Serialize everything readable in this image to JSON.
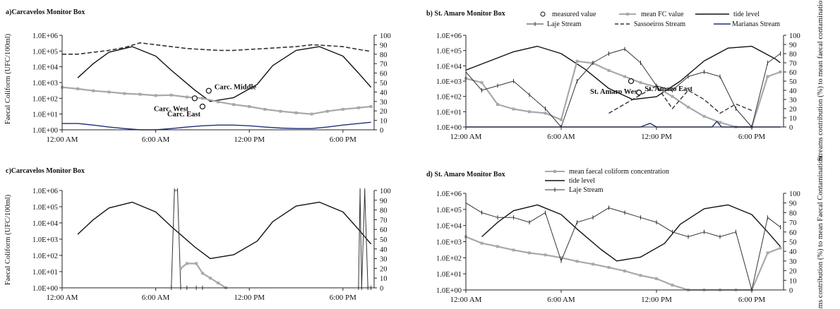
{
  "chart_data": [
    {
      "id": "a",
      "type": "line",
      "title": "a)Carcavelos Monitor Box",
      "ylabel": "Faecal Coliform (UFC/100ml)",
      "ylabel_right": "",
      "y_log": true,
      "ylim": [
        1,
        1000000
      ],
      "y_ticks": [
        "1.0E+00",
        "1.0E+01",
        "1.0E+02",
        "1.0E+03",
        "1.0E+04",
        "1.0E+05",
        "1.0E+06"
      ],
      "y2lim": [
        0,
        100
      ],
      "y2_ticks": [
        "0",
        "10",
        "20",
        "30",
        "40",
        "50",
        "60",
        "70",
        "80",
        "90",
        "100"
      ],
      "x_range_hours": [
        0,
        20
      ],
      "x_ticks": [
        {
          "hour": 0,
          "label": "12:00 AM"
        },
        {
          "hour": 6,
          "label": "6:00 AM"
        },
        {
          "hour": 12,
          "label": "12:00 PM"
        },
        {
          "hour": 18,
          "label": "6:00 PM"
        }
      ],
      "series": [
        {
          "axis": "y2",
          "color": "#111111",
          "style": "solid",
          "width": 1.4,
          "x": [
            1,
            2,
            3,
            4.5,
            6,
            7,
            8.5,
            9.5,
            11,
            12.5,
            13.5,
            15,
            16.5,
            18,
            19,
            19.8
          ],
          "y": [
            55,
            70,
            82,
            88,
            78,
            63,
            42,
            30,
            34,
            48,
            68,
            84,
            88,
            78,
            60,
            45
          ]
        },
        {
          "axis": "y2",
          "color": "#333333",
          "style": "dash",
          "width": 1.6,
          "x": [
            0,
            1,
            2,
            3,
            4,
            5,
            6,
            7,
            8,
            9,
            10,
            11,
            12,
            13,
            14,
            15,
            16,
            17,
            18,
            19,
            19.8
          ],
          "y": [
            80,
            80,
            82,
            84,
            87,
            92,
            90,
            88,
            86,
            85,
            84,
            84,
            85,
            86,
            87,
            88,
            90,
            89,
            88,
            85,
            83
          ]
        },
        {
          "axis": "y",
          "color": "#a8a8a8",
          "style": "marker",
          "width": 2.2,
          "x": [
            0,
            1,
            2,
            3,
            4,
            5,
            6,
            7,
            8,
            9,
            10,
            11,
            12,
            13,
            14,
            15,
            16,
            17,
            18,
            19,
            19.8
          ],
          "y": [
            500,
            400,
            300,
            250,
            200,
            180,
            150,
            160,
            120,
            100,
            60,
            40,
            30,
            20,
            15,
            12,
            10,
            15,
            20,
            25,
            30
          ]
        },
        {
          "axis": "y",
          "color": "#1f2f7a",
          "style": "solid",
          "width": 1.4,
          "x": [
            0,
            1,
            2,
            3,
            4,
            5,
            6,
            7,
            8,
            9,
            10,
            11,
            12,
            13,
            14,
            15,
            16,
            17,
            18,
            19,
            19.8
          ],
          "y": [
            2.5,
            2.5,
            2,
            1.5,
            1.2,
            1,
            1,
            1.2,
            1.5,
            1.8,
            2,
            2,
            1.8,
            1.5,
            1.3,
            1.2,
            1.2,
            1.5,
            2,
            2.5,
            3
          ]
        }
      ],
      "points": [
        {
          "label": "Carc. West",
          "x": 8.5,
          "y": 100
        },
        {
          "label": "Carc. Middle",
          "x": 9.4,
          "y": 300
        },
        {
          "label": "Carc. East",
          "x": 9.0,
          "y": 30
        }
      ]
    },
    {
      "id": "b",
      "type": "line",
      "title": "b) St. Amaro  Monitor Box",
      "ylabel": "",
      "ylabel_right": "Streams contribution (%) to mean faecal contamination",
      "y_log": true,
      "ylim": [
        1,
        1000000
      ],
      "y_ticks": [
        "1.0E+00",
        "1.0E+01",
        "1.0E+02",
        "1.0E+03",
        "1.0E+04",
        "1.0E+05",
        "1.0E+06"
      ],
      "y2lim": [
        0,
        100
      ],
      "y2_ticks": [
        "0",
        "10",
        "20",
        "30",
        "40",
        "50",
        "60",
        "70",
        "80",
        "90",
        "100"
      ],
      "x_range_hours": [
        0,
        20
      ],
      "x_ticks": [
        {
          "hour": 0,
          "label": "12:00 AM"
        },
        {
          "hour": 6,
          "label": "6:00 AM"
        },
        {
          "hour": 12,
          "label": "12:00 PM"
        },
        {
          "hour": 18,
          "label": "6:00 PM"
        }
      ],
      "legend": [
        "measured value",
        "mean FC value",
        "tide level",
        "Laje Stream",
        "Sassoeiros Stream",
        "Marianas Stream"
      ],
      "series": [
        {
          "axis": "y2",
          "color": "#111111",
          "style": "solid",
          "width": 1.4,
          "x": [
            0,
            1.5,
            3,
            4.5,
            6,
            7.5,
            9,
            10.5,
            12,
            13.5,
            15,
            16.5,
            18,
            19.5,
            19.8
          ],
          "y": [
            62,
            72,
            82,
            88,
            80,
            63,
            42,
            30,
            33,
            50,
            72,
            86,
            88,
            74,
            70
          ]
        },
        {
          "axis": "y",
          "color": "#a8a8a8",
          "style": "marker",
          "width": 2.2,
          "x": [
            0,
            1,
            2,
            3,
            4,
            5,
            6,
            7,
            8,
            9,
            10,
            11,
            12,
            13,
            14,
            15,
            16,
            17,
            18,
            19,
            19.8
          ],
          "y": [
            1500,
            800,
            30,
            15,
            10,
            8,
            3,
            20000,
            15000,
            5000,
            2000,
            800,
            400,
            100,
            20,
            5,
            2,
            1,
            1,
            2000,
            4000
          ]
        },
        {
          "axis": "y2",
          "color": "#333333",
          "style": "cross",
          "width": 1.0,
          "x": [
            0,
            1,
            2,
            3,
            4,
            5,
            6,
            7,
            8,
            9,
            10,
            11,
            12,
            13,
            14,
            15,
            16,
            17,
            18,
            19,
            19.8
          ],
          "y": [
            60,
            40,
            45,
            50,
            35,
            20,
            0,
            50,
            70,
            80,
            85,
            70,
            45,
            40,
            55,
            60,
            55,
            20,
            0,
            70,
            80
          ]
        },
        {
          "axis": "y2",
          "color": "#333333",
          "style": "dash",
          "width": 1.4,
          "x": [
            9,
            10,
            11,
            12,
            13,
            14,
            15,
            16,
            17,
            18
          ],
          "y": [
            15,
            25,
            35,
            45,
            20,
            40,
            30,
            15,
            25,
            18
          ]
        },
        {
          "axis": "y2",
          "color": "#1f2f7a",
          "style": "solid",
          "width": 1.4,
          "x": [
            0,
            11,
            11.6,
            12,
            13,
            15.5,
            15.8,
            16.1,
            17,
            19.8
          ],
          "y": [
            0,
            0,
            4,
            0,
            0,
            0,
            6,
            0,
            0,
            0
          ]
        }
      ],
      "points": [
        {
          "label": "St. Amaro West",
          "x": 10.4,
          "y": 1000
        },
        {
          "label": "St. Amaro East",
          "x": 10.9,
          "y": 180
        }
      ]
    },
    {
      "id": "c",
      "type": "line",
      "title": "c)Carcavelos Monitor Box",
      "ylabel": "Faecal Coliform (UFC/100ml)",
      "ylabel_right": "",
      "y_log": true,
      "ylim": [
        1,
        1000000
      ],
      "y_ticks": [
        "1.0E+00",
        "1.0E+01",
        "1.0E+02",
        "1.0E+03",
        "1.0E+04",
        "1.0E+05",
        "1.0E+06"
      ],
      "y2lim": [
        0,
        100
      ],
      "y2_ticks": [
        "0",
        "10",
        "20",
        "30",
        "40",
        "50",
        "60",
        "70",
        "80",
        "90",
        "100"
      ],
      "x_range_hours": [
        0,
        20
      ],
      "x_ticks": [
        {
          "hour": 0,
          "label": "12:00 AM"
        },
        {
          "hour": 6,
          "label": "6:00 AM"
        },
        {
          "hour": 12,
          "label": "12:00 PM"
        },
        {
          "hour": 18,
          "label": "6:00 PM"
        }
      ],
      "series": [
        {
          "axis": "y2",
          "color": "#111111",
          "style": "solid",
          "width": 1.4,
          "x": [
            1,
            2,
            3,
            4.5,
            6,
            7,
            8.5,
            9.5,
            11,
            12.5,
            13.5,
            15,
            16.5,
            18,
            19,
            19.8
          ],
          "y": [
            55,
            70,
            82,
            88,
            78,
            63,
            42,
            30,
            34,
            48,
            68,
            84,
            88,
            78,
            60,
            45
          ]
        },
        {
          "axis": "y2",
          "color": "#333333",
          "style": "cross",
          "width": 1.0,
          "x": [
            0,
            7,
            7.2,
            7.4,
            7.6,
            8,
            8.6,
            9,
            19,
            19.1,
            19.2,
            19.4,
            19.6,
            19.8
          ],
          "y": [
            0,
            0,
            100,
            100,
            0,
            0,
            0,
            0,
            0,
            100,
            0,
            100,
            0,
            0
          ]
        },
        {
          "axis": "y2",
          "color": "#a8a8a8",
          "style": "marker",
          "width": 2.2,
          "x": [
            7.6,
            8,
            8.6,
            9,
            9.5,
            10,
            10.5
          ],
          "y": [
            20,
            25,
            25,
            15,
            10,
            5,
            0
          ]
        }
      ]
    },
    {
      "id": "d",
      "type": "line",
      "title": "d) St. Amaro  Monitor Box",
      "ylabel": "",
      "ylabel_right": "Streams contribution (%) to mean Faecal Contamination",
      "y_log": true,
      "ylim": [
        1,
        1000000
      ],
      "y_ticks": [
        "1.0E+00",
        "1.0E+01",
        "1.0E+02",
        "1.0E+03",
        "1.0E+04",
        "1.0E+05",
        "1.0E+06"
      ],
      "y2lim": [
        0,
        100
      ],
      "y2_ticks": [
        "0",
        "10",
        "20",
        "30",
        "40",
        "50",
        "60",
        "70",
        "80",
        "90",
        "100"
      ],
      "x_range_hours": [
        0,
        20
      ],
      "x_ticks": [
        {
          "hour": 0,
          "label": "12:00 AM"
        },
        {
          "hour": 6,
          "label": "6:00 AM"
        },
        {
          "hour": 12,
          "label": "12:00 PM"
        },
        {
          "hour": 18,
          "label": "6:00 PM"
        }
      ],
      "legend": [
        "mean faecal coliform concentration",
        "tide level",
        "Laje Stream"
      ],
      "series": [
        {
          "axis": "y",
          "color": "#a8a8a8",
          "style": "marker",
          "width": 2.2,
          "x": [
            0,
            1,
            2,
            3,
            4,
            5,
            6,
            7,
            8,
            9,
            10,
            11,
            12,
            13,
            14,
            15,
            16,
            17,
            18,
            19,
            19.8
          ],
          "y": [
            2000,
            800,
            500,
            300,
            200,
            150,
            100,
            60,
            40,
            25,
            15,
            8,
            5,
            2,
            1,
            1,
            1,
            1,
            1,
            200,
            400
          ]
        },
        {
          "axis": "y2",
          "color": "#111111",
          "style": "solid",
          "width": 1.4,
          "x": [
            1,
            2,
            3,
            4.5,
            6,
            7,
            8.5,
            9.5,
            11,
            12.5,
            13.5,
            15,
            16.5,
            18,
            19,
            19.8
          ],
          "y": [
            55,
            70,
            82,
            88,
            78,
            63,
            42,
            30,
            34,
            48,
            68,
            84,
            88,
            78,
            60,
            45
          ]
        },
        {
          "axis": "y2",
          "color": "#333333",
          "style": "cross",
          "width": 1.0,
          "x": [
            0,
            1,
            2,
            3,
            4,
            5,
            6,
            7,
            8,
            9,
            10,
            11,
            12,
            13,
            14,
            15,
            16,
            17,
            18,
            19,
            19.8
          ],
          "y": [
            90,
            80,
            75,
            75,
            70,
            80,
            30,
            70,
            75,
            85,
            80,
            75,
            70,
            60,
            55,
            60,
            55,
            60,
            0,
            75,
            65
          ]
        }
      ]
    }
  ]
}
